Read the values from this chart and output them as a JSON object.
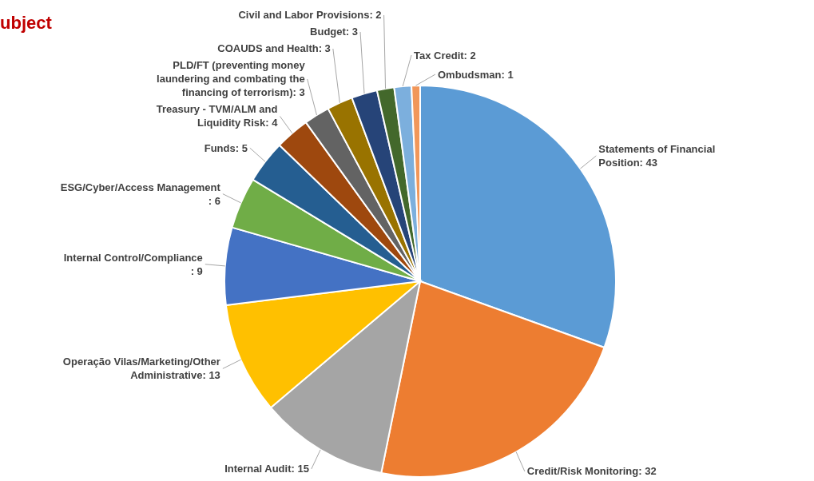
{
  "chart_data": {
    "type": "pie",
    "title": "ubject",
    "categories": [
      "Statements of Financial Position",
      "Credit/Risk Monitoring",
      "Internal Audit",
      "Operação Vilas/Marketing/Other Administrative",
      "Internal Control/Compliance",
      "ESG/Cyber/Access Management",
      "Funds",
      "Treasury - TVM/ALM and Liquidity Risk",
      "PLD/FT (preventing money laundering and combating the financing of terrorism)",
      "COAUDS and Health",
      "Budget",
      "Civil and Labor Provisions",
      "Tax Credit",
      "Ombudsman"
    ],
    "values": [
      43,
      32,
      15,
      13,
      9,
      6,
      5,
      4,
      3,
      3,
      3,
      2,
      2,
      1
    ],
    "value_labels": [
      ": 43",
      ": 32",
      ": 15",
      ": 13",
      ": 9",
      ": 6",
      ": 5",
      ": 4",
      ": 3",
      ": 3",
      ": 3",
      ": 2",
      ": 2",
      ": 1"
    ],
    "colors": [
      "#5b9bd5",
      "#ed7d31",
      "#a5a5a5",
      "#ffc000",
      "#4472c4",
      "#70ad47",
      "#255e91",
      "#9e480e",
      "#636363",
      "#997300",
      "#264478",
      "#43682b",
      "#7cafdd",
      "#f1975a"
    ]
  }
}
